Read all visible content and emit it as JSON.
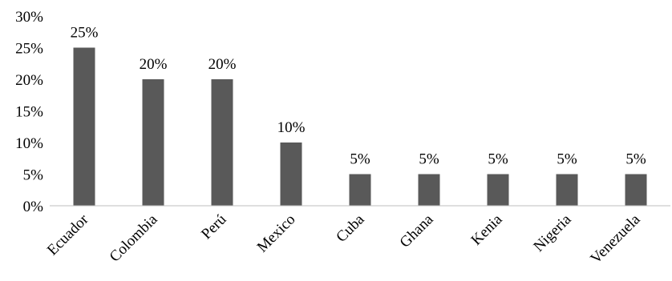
{
  "chart_data": {
    "type": "bar",
    "categories": [
      "Ecuador",
      "Colombia",
      "Perú",
      "Mexico",
      "Cuba",
      "Ghana",
      "Kenia",
      "Nigeria",
      "Venezuela"
    ],
    "values": [
      25,
      20,
      20,
      10,
      5,
      5,
      5,
      5,
      5
    ],
    "data_labels": [
      "25%",
      "20%",
      "20%",
      "10%",
      "5%",
      "5%",
      "5%",
      "5%",
      "5%"
    ],
    "y_ticks": [
      0,
      5,
      10,
      15,
      20,
      25,
      30
    ],
    "y_tick_labels": [
      "0%",
      "5%",
      "10%",
      "15%",
      "20%",
      "25%",
      "30%"
    ],
    "ylim": [
      0,
      30
    ],
    "title": "",
    "xlabel": "",
    "ylabel": "",
    "grid": false,
    "legend": "none",
    "bar_color": "#595959",
    "axis_color": "#bfbfbf"
  }
}
